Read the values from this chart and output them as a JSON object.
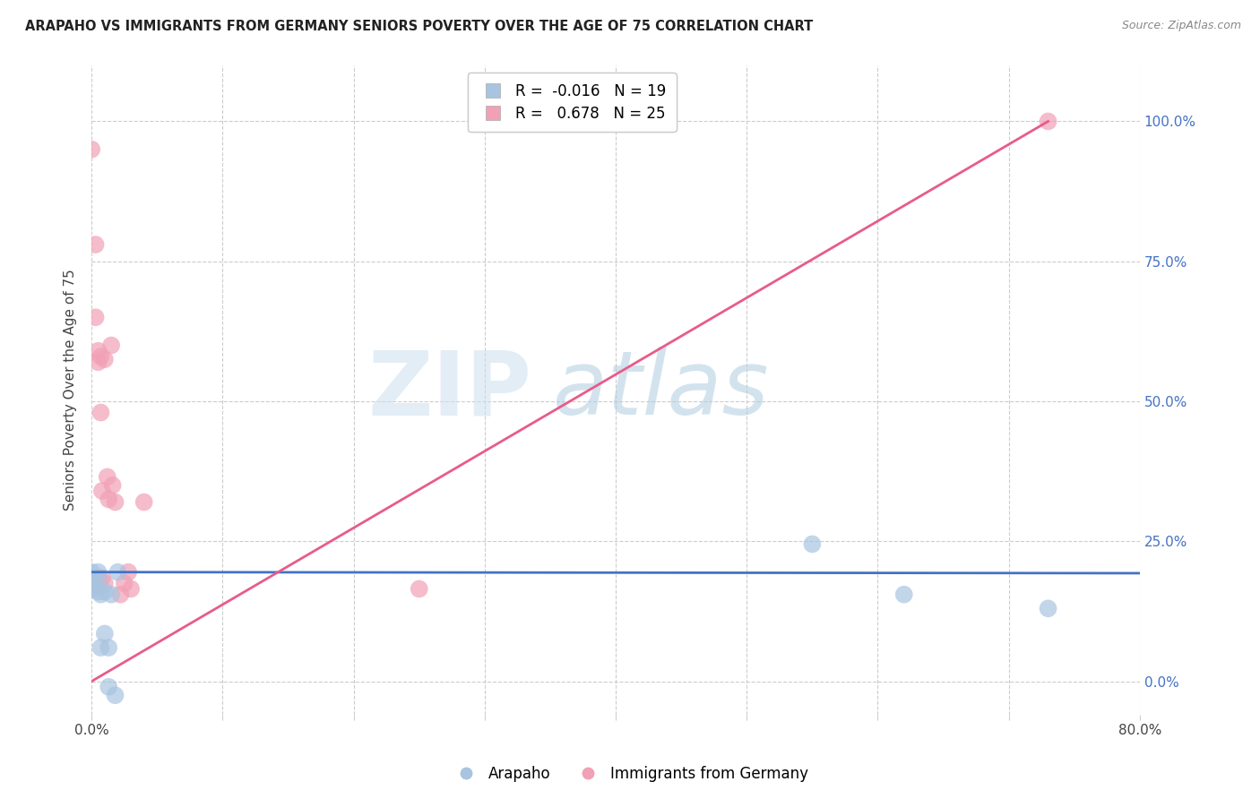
{
  "title": "ARAPAHO VS IMMIGRANTS FROM GERMANY SENIORS POVERTY OVER THE AGE OF 75 CORRELATION CHART",
  "source": "Source: ZipAtlas.com",
  "ylabel": "Seniors Poverty Over the Age of 75",
  "xlim": [
    0.0,
    0.8
  ],
  "ylim": [
    -0.06,
    1.1
  ],
  "yticks": [
    0.0,
    0.25,
    0.5,
    0.75,
    1.0
  ],
  "xticks": [
    0.0,
    0.1,
    0.2,
    0.3,
    0.4,
    0.5,
    0.6,
    0.7,
    0.8
  ],
  "ytick_labels_right": [
    "0.0%",
    "25.0%",
    "50.0%",
    "75.0%",
    "100.0%"
  ],
  "legend_labels": [
    "Arapaho",
    "Immigrants from Germany"
  ],
  "arapaho_color": "#a8c4e0",
  "germany_color": "#f2a0b5",
  "arapaho_line_color": "#4472c4",
  "germany_line_color": "#e85b8a",
  "watermark_zip": "ZIP",
  "watermark_atlas": "atlas",
  "arapaho_r": -0.016,
  "arapaho_n": 19,
  "germany_r": 0.678,
  "germany_n": 25,
  "arapaho_line_x": [
    0.0,
    0.8
  ],
  "arapaho_line_y": [
    0.195,
    0.193
  ],
  "germany_line_x": [
    0.0,
    0.73
  ],
  "germany_line_y": [
    0.0,
    1.0
  ],
  "arapaho_points_x": [
    0.0,
    0.0,
    0.0,
    0.0,
    0.005,
    0.005,
    0.005,
    0.007,
    0.007,
    0.01,
    0.01,
    0.013,
    0.013,
    0.015,
    0.018,
    0.02,
    0.55,
    0.62,
    0.73
  ],
  "arapaho_points_y": [
    0.195,
    0.185,
    0.175,
    0.165,
    0.18,
    0.16,
    0.195,
    0.155,
    0.06,
    0.16,
    0.085,
    0.06,
    -0.01,
    0.155,
    -0.025,
    0.195,
    0.245,
    0.155,
    0.13
  ],
  "germany_points_x": [
    0.0,
    0.003,
    0.003,
    0.005,
    0.005,
    0.005,
    0.005,
    0.007,
    0.007,
    0.008,
    0.008,
    0.01,
    0.01,
    0.012,
    0.013,
    0.015,
    0.016,
    0.018,
    0.022,
    0.025,
    0.028,
    0.03,
    0.04,
    0.25,
    0.73
  ],
  "germany_points_y": [
    0.95,
    0.78,
    0.65,
    0.57,
    0.59,
    0.185,
    0.17,
    0.58,
    0.48,
    0.34,
    0.185,
    0.575,
    0.175,
    0.365,
    0.325,
    0.6,
    0.35,
    0.32,
    0.155,
    0.175,
    0.195,
    0.165,
    0.32,
    0.165,
    1.0
  ]
}
